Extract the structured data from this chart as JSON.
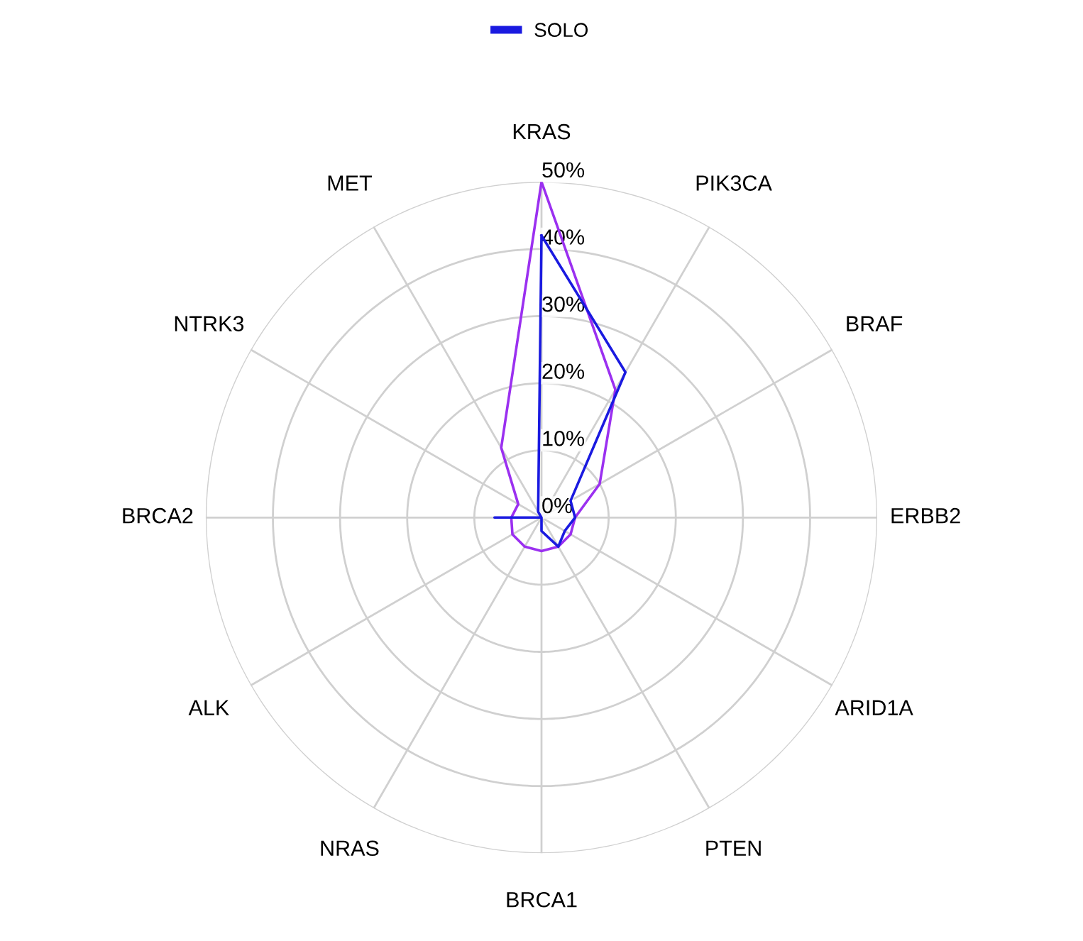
{
  "chart_data": {
    "type": "radar",
    "categories": [
      "KRAS",
      "PIK3CA",
      "BRAF",
      "ERBB2",
      "ARID1A",
      "PTEN",
      "BRCA1",
      "NRAS",
      "ALK",
      "BRCA2",
      "NTRK3",
      "MET"
    ],
    "series": [
      {
        "color": "#9b30f0",
        "values": [
          50,
          22,
          10,
          5,
          5,
          5,
          5,
          5,
          5,
          4.5,
          4,
          12
        ]
      },
      {
        "name": "SOLO",
        "color": "#1a1ae0",
        "values": [
          42,
          25,
          5,
          5,
          4,
          5,
          2,
          0,
          0,
          7,
          0,
          1
        ]
      }
    ],
    "ylim": [
      0,
      50
    ],
    "yticks": [
      {
        "value": 0,
        "label": "0%"
      },
      {
        "value": 10,
        "label": "10%"
      },
      {
        "value": 20,
        "label": "20%"
      },
      {
        "value": 30,
        "label": "30%"
      },
      {
        "value": 40,
        "label": "40%"
      },
      {
        "value": 50,
        "label": "50%"
      }
    ],
    "grid": true,
    "legend": "top"
  }
}
